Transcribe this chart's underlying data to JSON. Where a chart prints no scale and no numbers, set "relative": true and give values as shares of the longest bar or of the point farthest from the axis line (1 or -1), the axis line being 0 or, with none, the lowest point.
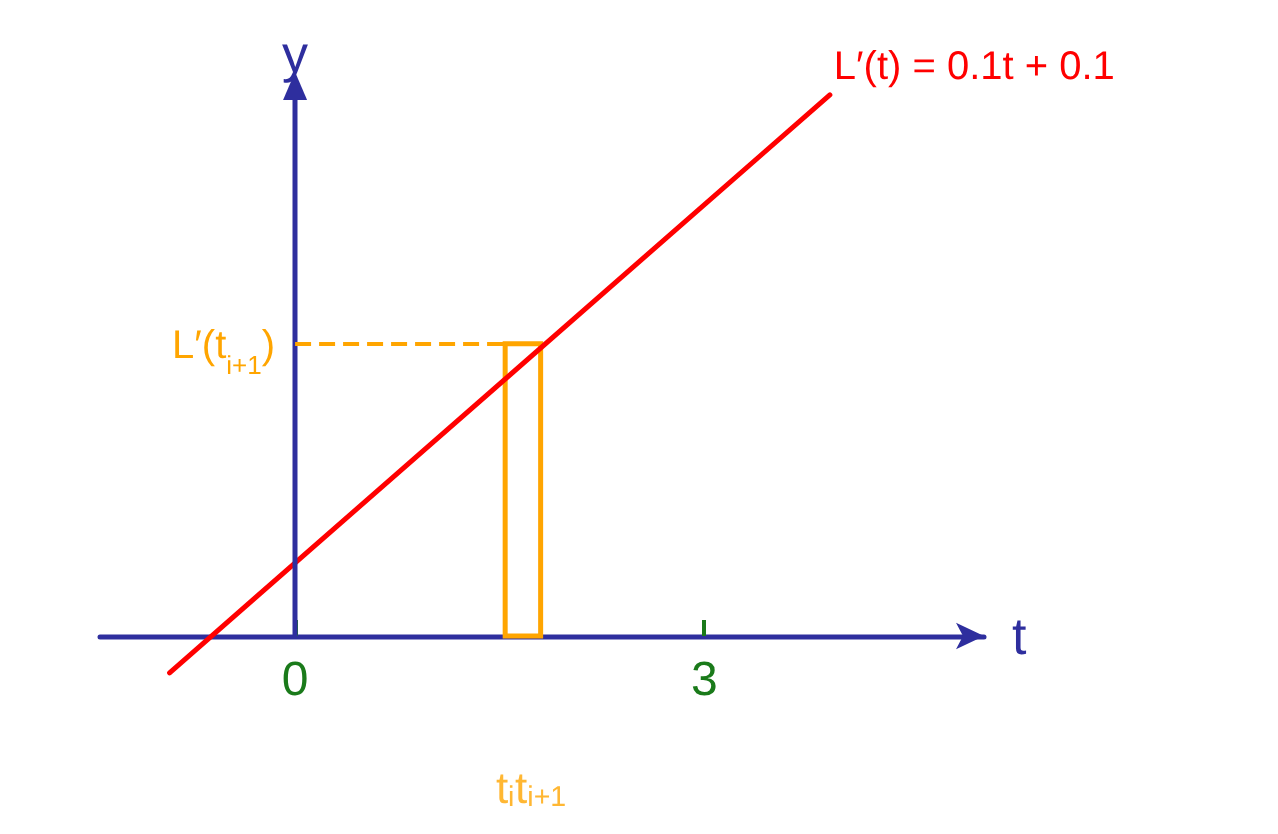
{
  "chart_data": {
    "type": "line",
    "relative": true,
    "xlabel": "t",
    "ylabel": "y",
    "xlim": [
      -1.43,
      5.05
    ],
    "xticks": [
      0,
      3
    ],
    "series": [
      {
        "name": "L′(t) = 0.1t + 0.1",
        "color": "#ff0000",
        "x": [
          -0.92,
          3.92
        ],
        "values": [
          -0.068,
          1
        ]
      },
      {
        "type": "histogram",
        "color": "#ffa500",
        "bins": [
          1.54,
          1.8
        ],
        "values": [
          0.54
        ]
      }
    ],
    "ref_lines": [
      {
        "axis": "x",
        "value": 0,
        "color": "#2e2e9e",
        "line_style": "solid"
      },
      {
        "axis": "y",
        "value": 0.54,
        "label": "L′(t$_{i+1}$)",
        "color": "#ffa500",
        "line_style": "dashed"
      }
    ],
    "annotations": [
      "t$_{i}$",
      "t$_{i+1}$"
    ]
  }
}
